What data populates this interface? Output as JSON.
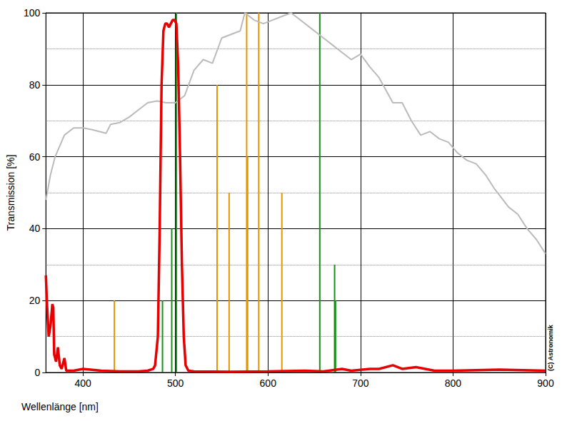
{
  "chart_data": {
    "type": "line",
    "xlabel": "Wellenlänge [nm]",
    "ylabel": "Transmission [%]",
    "annotation": "(C) Astronomik",
    "xlim": [
      360,
      900
    ],
    "xticks": [
      400,
      500,
      600,
      700,
      800,
      900
    ],
    "ylim": [
      0,
      100
    ],
    "yticks": [
      0,
      20,
      40,
      60,
      80,
      100
    ],
    "grid": true,
    "series": [
      {
        "type": "line",
        "color": "#bbbbbb",
        "x": [
          360,
          365,
          370,
          380,
          390,
          400,
          410,
          425,
          430,
          440,
          450,
          460,
          470,
          480,
          490,
          500,
          510,
          520,
          530,
          540,
          550,
          560,
          570,
          575,
          585,
          595,
          605,
          615,
          625,
          635,
          645,
          660,
          670,
          680,
          690,
          700,
          710,
          720,
          735,
          745,
          755,
          765,
          775,
          785,
          795,
          805,
          815,
          825,
          835,
          845,
          860,
          870,
          880,
          890,
          900
        ],
        "values": [
          48,
          55,
          60,
          66,
          68,
          68,
          67.5,
          66.5,
          69,
          69.5,
          71,
          73,
          75,
          75.5,
          75,
          75,
          77,
          84,
          87,
          86,
          93,
          94,
          95,
          100,
          98,
          97,
          98,
          99,
          100,
          98,
          96,
          93,
          91,
          89,
          87,
          88.5,
          85,
          82,
          75,
          75,
          70,
          66,
          67,
          65,
          64,
          61,
          59,
          58,
          55,
          51,
          46,
          44,
          40,
          37,
          33
        ]
      },
      {
        "type": "bar",
        "color": "#e69500",
        "x": [
          434,
          545,
          558,
          577,
          578,
          590,
          615
        ],
        "values": [
          20,
          80,
          50,
          100,
          60,
          100,
          50
        ]
      },
      {
        "type": "bar",
        "color": "#1a8f1a",
        "x": [
          486,
          496,
          501,
          656,
          672,
          673
        ],
        "values": [
          20,
          40,
          100,
          100,
          30,
          20
        ]
      },
      {
        "type": "line",
        "color": "#e60000",
        "x": [
          360,
          361,
          363,
          365,
          367,
          368,
          369,
          371,
          373,
          375,
          377,
          380,
          382,
          390,
          400,
          420,
          440,
          460,
          470,
          476,
          478,
          481,
          483,
          485,
          487,
          489,
          491,
          493,
          495,
          497,
          499,
          501,
          503,
          505,
          507,
          509,
          511,
          514,
          520,
          560,
          600,
          640,
          660,
          680,
          690,
          710,
          720,
          735,
          745,
          760,
          780,
          800,
          850,
          900
        ],
        "values": [
          27,
          20,
          10,
          13,
          19,
          18,
          5,
          3,
          7,
          2,
          1,
          4,
          0.5,
          0.5,
          1,
          0.5,
          0.3,
          0.3,
          0.5,
          1,
          2,
          10,
          40,
          80,
          95,
          97,
          97,
          96,
          97,
          98,
          98,
          97,
          85,
          60,
          30,
          10,
          2,
          0.5,
          0.3,
          0.2,
          0.3,
          0.5,
          0.3,
          1,
          0.5,
          1,
          1,
          2,
          1,
          1.5,
          0.5,
          0.5,
          0.8,
          0.5
        ]
      }
    ]
  }
}
